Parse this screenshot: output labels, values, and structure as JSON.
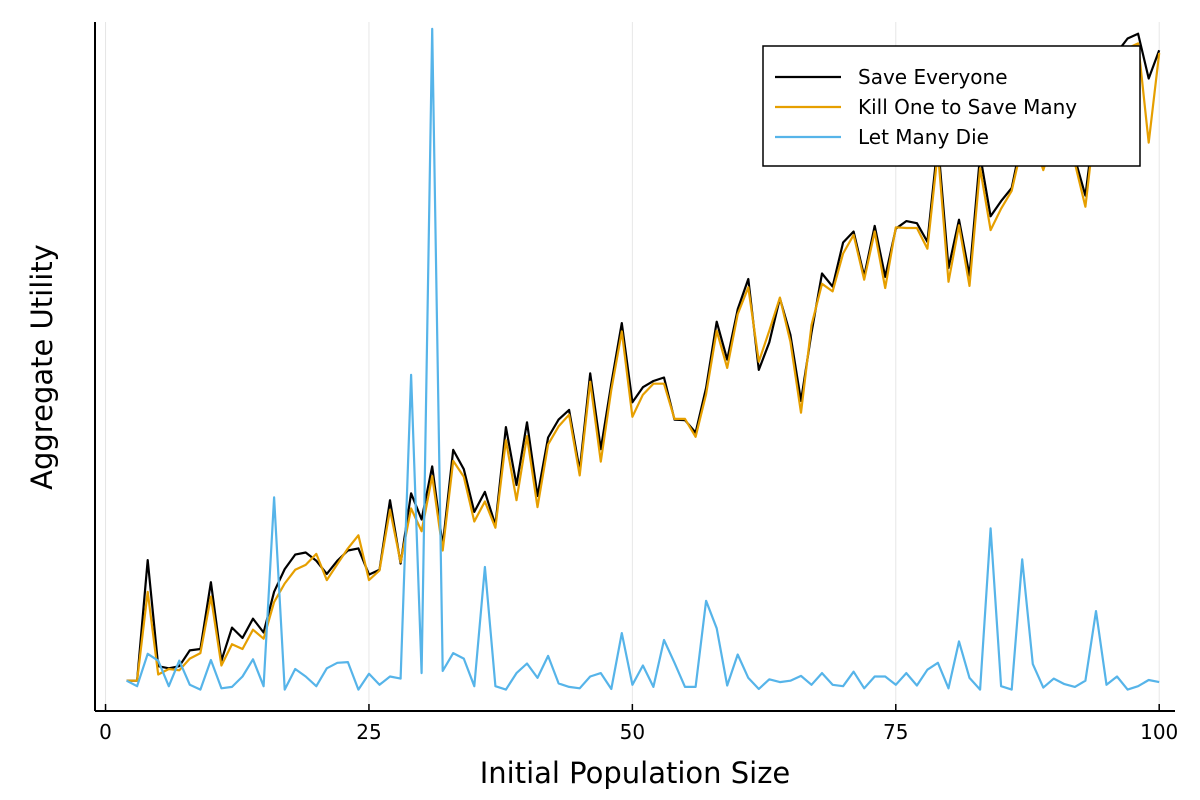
{
  "chart_data": {
    "type": "line",
    "xlabel": "Initial Population Size",
    "ylabel": "Aggregate Utility",
    "xlim": [
      -1,
      101.5
    ],
    "ylim": [
      0,
      100
    ],
    "xticks": [
      0,
      25,
      50,
      75,
      100
    ],
    "xtick_labels": [
      "0",
      "25",
      "50",
      "75",
      "100"
    ],
    "yticks_shown": false,
    "grid": "vertical",
    "legend_position": "top-right",
    "x": [
      2,
      3,
      4,
      5,
      6,
      7,
      8,
      9,
      10,
      11,
      12,
      13,
      14,
      15,
      16,
      17,
      18,
      19,
      20,
      21,
      22,
      23,
      24,
      25,
      26,
      27,
      28,
      29,
      30,
      31,
      32,
      33,
      34,
      35,
      36,
      37,
      38,
      39,
      40,
      41,
      42,
      43,
      44,
      45,
      46,
      47,
      48,
      49,
      50,
      51,
      52,
      53,
      54,
      55,
      56,
      57,
      58,
      59,
      60,
      61,
      62,
      63,
      64,
      65,
      66,
      67,
      68,
      69,
      70,
      71,
      72,
      73,
      74,
      75,
      76,
      77,
      78,
      79,
      80,
      81,
      82,
      83,
      84,
      85,
      86,
      87,
      88,
      89,
      90,
      91,
      92,
      93,
      94,
      95,
      96,
      97,
      98,
      99,
      100
    ],
    "series": [
      {
        "name": "Save Everyone",
        "color": "#000000",
        "values": [
          4.4,
          4.4,
          21.9,
          6.5,
          6.2,
          6.5,
          8.8,
          9.0,
          18.7,
          7.3,
          12.1,
          10.6,
          13.4,
          11.4,
          17.3,
          20.6,
          22.7,
          23.0,
          21.8,
          19.9,
          21.8,
          23.3,
          23.6,
          19.8,
          20.5,
          30.6,
          21.4,
          31.6,
          27.8,
          35.5,
          24.0,
          37.9,
          35.1,
          28.9,
          31.8,
          27.0,
          41.2,
          32.8,
          41.9,
          31.2,
          39.7,
          42.3,
          43.7,
          34.9,
          49.0,
          38.0,
          47.5,
          56.3,
          44.8,
          47.0,
          47.9,
          48.4,
          42.3,
          42.2,
          40.4,
          46.9,
          56.5,
          51.0,
          58.3,
          62.7,
          49.5,
          53.5,
          59.9,
          54.6,
          45.0,
          54.9,
          63.5,
          61.6,
          68.0,
          69.6,
          63.1,
          70.4,
          63.0,
          70.0,
          71.1,
          70.8,
          68.1,
          82.6,
          64.3,
          71.3,
          63.2,
          80.7,
          71.8,
          74.0,
          75.9,
          83.3,
          84.5,
          79.3,
          84.1,
          90.1,
          80.2,
          74.8,
          87.1,
          92.8,
          95.6,
          97.6,
          98.3,
          91.8,
          95.9
        ]
      },
      {
        "name": "Kill One to Save Many",
        "color": "#e69f00",
        "values": [
          4.4,
          4.4,
          17.3,
          5.3,
          6.1,
          5.9,
          7.6,
          8.4,
          16.6,
          6.6,
          9.7,
          9.0,
          11.8,
          10.5,
          15.8,
          18.5,
          20.5,
          21.2,
          22.8,
          19.0,
          21.3,
          23.6,
          25.5,
          19.0,
          20.4,
          29.2,
          21.6,
          29.4,
          26.1,
          34.1,
          23.3,
          36.3,
          34.0,
          27.5,
          30.4,
          26.6,
          39.3,
          30.6,
          39.9,
          29.6,
          38.7,
          41.3,
          43.0,
          34.2,
          47.8,
          36.2,
          46.6,
          55.1,
          42.7,
          45.9,
          47.5,
          47.5,
          42.4,
          42.4,
          39.8,
          46.0,
          55.2,
          49.8,
          57.6,
          61.5,
          50.7,
          55.2,
          60.0,
          53.6,
          43.3,
          56.0,
          62.0,
          60.9,
          66.4,
          69.1,
          62.6,
          69.6,
          61.4,
          70.2,
          70.1,
          70.1,
          67.1,
          81.2,
          62.3,
          70.5,
          61.7,
          78.8,
          69.8,
          72.9,
          75.5,
          82.2,
          83.2,
          78.5,
          83.3,
          89.9,
          79.5,
          73.2,
          86.5,
          92.4,
          94.6,
          96.2,
          96.9,
          82.5,
          95.5
        ]
      },
      {
        "name": "Let Many Die",
        "color": "#56b4e9",
        "values": [
          4.4,
          3.6,
          8.3,
          7.3,
          3.6,
          7.3,
          3.8,
          3.1,
          7.4,
          3.3,
          3.5,
          5.0,
          7.5,
          3.6,
          31.0,
          3.1,
          6.1,
          5.0,
          3.6,
          6.2,
          7.0,
          7.1,
          3.1,
          5.4,
          3.8,
          5.0,
          4.7,
          48.8,
          5.5,
          99.0,
          5.8,
          8.4,
          7.6,
          3.6,
          20.9,
          3.6,
          3.1,
          5.5,
          6.9,
          4.8,
          8.0,
          4.0,
          3.5,
          3.3,
          5.0,
          5.5,
          3.2,
          11.3,
          3.8,
          6.6,
          3.5,
          10.3,
          7.0,
          3.5,
          3.5,
          16.0,
          12.0,
          3.7,
          8.2,
          4.8,
          3.2,
          4.6,
          4.2,
          4.4,
          5.1,
          3.8,
          5.5,
          3.8,
          3.6,
          5.7,
          3.3,
          5.0,
          5.0,
          3.8,
          5.5,
          3.7,
          6.0,
          7.0,
          3.3,
          10.1,
          4.8,
          3.1,
          26.5,
          3.6,
          3.1,
          22.0,
          6.8,
          3.4,
          4.7,
          3.9,
          3.5,
          4.4,
          14.5,
          3.8,
          5.0,
          3.1,
          3.6,
          4.5,
          4.2
        ]
      }
    ]
  }
}
